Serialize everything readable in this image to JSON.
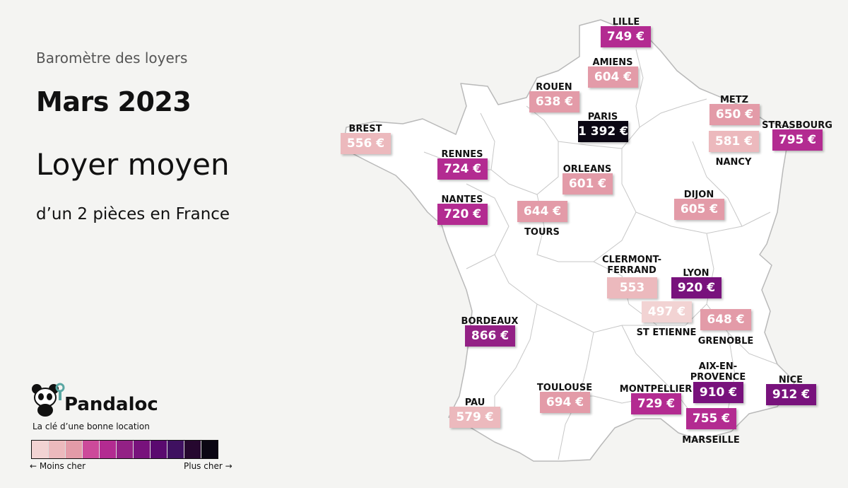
{
  "header": {
    "subtitle": "Baromètre des loyers",
    "title": "Mars 2023",
    "headline": "Loyer moyen",
    "subline": "d’un 2 pièces en France"
  },
  "brand": {
    "name": "Pandaloc",
    "tagline": "La clé d’une bonne location"
  },
  "legend": {
    "low_label": "← Moins cher",
    "high_label": "Plus cher →",
    "colors": [
      "#f2d3d3",
      "#ecb9bd",
      "#e39ba8",
      "#cc4a9a",
      "#b32b91",
      "#932185",
      "#78127c",
      "#5a0a6f",
      "#3f1160",
      "#26082f",
      "#0b0713"
    ]
  },
  "cities": [
    {
      "name": "LILLE",
      "price": "749 €",
      "color": "#b32b91"
    },
    {
      "name": "AMIENS",
      "price": "604 €",
      "color": "#e39ba8"
    },
    {
      "name": "ROUEN",
      "price": "638 €",
      "color": "#e39ba8"
    },
    {
      "name": "PARIS",
      "price": "1 392 €",
      "color": "#0b0713"
    },
    {
      "name": "METZ",
      "price": "650 €",
      "color": "#e39ba8"
    },
    {
      "name": "NANCY",
      "price": "581 €",
      "color": "#ecb9bd"
    },
    {
      "name": "STRASBOURG",
      "price": "795 €",
      "color": "#b32b91"
    },
    {
      "name": "BREST",
      "price": "556 €",
      "color": "#ecb9bd"
    },
    {
      "name": "RENNES",
      "price": "724 €",
      "color": "#b32b91"
    },
    {
      "name": "ORLEANS",
      "price": "601 €",
      "color": "#e39ba8"
    },
    {
      "name": "NANTES",
      "price": "720 €",
      "color": "#b32b91"
    },
    {
      "name": "TOURS",
      "price": "644 €",
      "color": "#e39ba8"
    },
    {
      "name": "DIJON",
      "price": "605 €",
      "color": "#e39ba8"
    },
    {
      "name": "CLERMONT-FERRAND",
      "price": "553",
      "color": "#ecb9bd"
    },
    {
      "name": "LYON",
      "price": "920 €",
      "color": "#78127c"
    },
    {
      "name": "ST ETIENNE",
      "price": "497 €",
      "color": "#f2d3d3"
    },
    {
      "name": "GRENOBLE",
      "price": "648 €",
      "color": "#e39ba8"
    },
    {
      "name": "BORDEAUX",
      "price": "866 €",
      "color": "#932185"
    },
    {
      "name": "AIX-EN-PROVENCE",
      "price": "910 €",
      "color": "#78127c"
    },
    {
      "name": "NICE",
      "price": "912 €",
      "color": "#78127c"
    },
    {
      "name": "TOULOUSE",
      "price": "694 €",
      "color": "#e39ba8"
    },
    {
      "name": "MONTPELLIER",
      "price": "729 €",
      "color": "#b32b91"
    },
    {
      "name": "PAU",
      "price": "579 €",
      "color": "#ecb9bd"
    },
    {
      "name": "MARSEILLE",
      "price": "755 €",
      "color": "#b32b91"
    }
  ]
}
